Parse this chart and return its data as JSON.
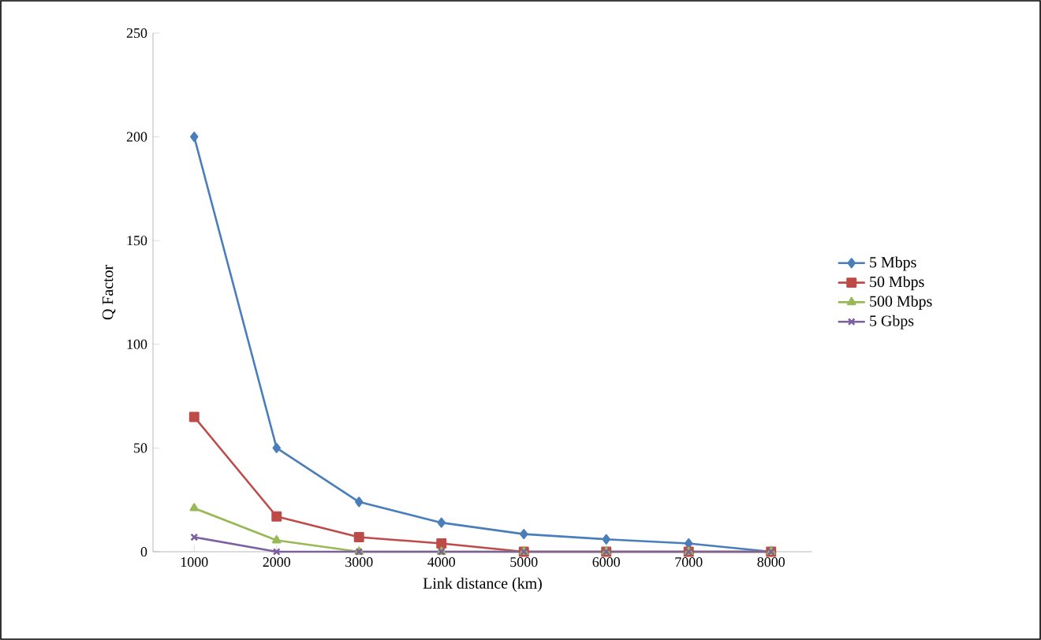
{
  "chart_data": {
    "type": "line",
    "xlabel": "Link distance (km)",
    "ylabel": "Q Factor",
    "categories": [
      "1000",
      "2000",
      "3000",
      "4000",
      "5000",
      "6000",
      "7000",
      "8000"
    ],
    "series": [
      {
        "name": "5 Mbps",
        "color": "#4a7ebb",
        "marker": "diamond",
        "values": [
          200,
          50,
          24,
          14,
          8.5,
          6,
          4,
          0
        ]
      },
      {
        "name": "50 Mbps",
        "color": "#be4b48",
        "marker": "square",
        "values": [
          65,
          17,
          7,
          4,
          0,
          0,
          0,
          0
        ]
      },
      {
        "name": "500 Mbps",
        "color": "#98b954",
        "marker": "triangle",
        "values": [
          21,
          5.5,
          0,
          0,
          0,
          0,
          0,
          0
        ]
      },
      {
        "name": "5 Gbps",
        "color": "#7d60a0",
        "marker": "cross",
        "values": [
          7,
          0,
          0,
          0,
          0,
          0,
          0,
          0
        ]
      }
    ],
    "ylim": [
      0,
      250
    ],
    "yticks": [
      0,
      50,
      100,
      150,
      200,
      250
    ],
    "grid": false,
    "legend": "right",
    "line_style": "solid"
  }
}
